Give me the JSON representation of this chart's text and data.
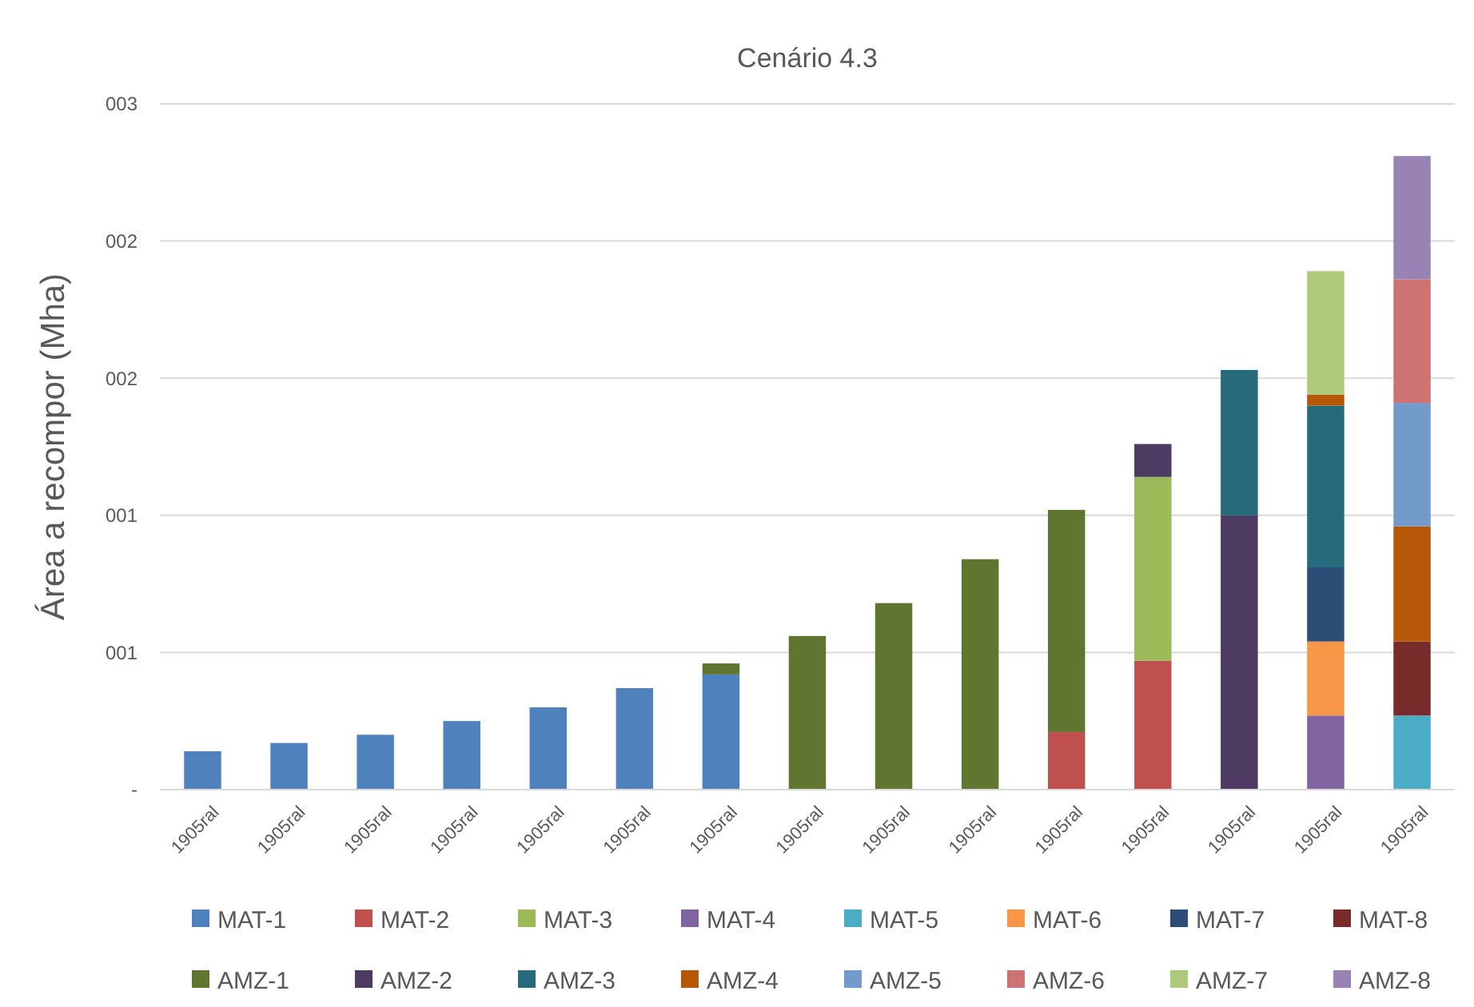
{
  "chart_data": {
    "type": "bar",
    "title": "Cenário 4.3",
    "ylabel": "Área a recompor (Mha)",
    "stacked": true,
    "grid": "y",
    "legend": "bottom",
    "categories": [
      "1905ral",
      "1905ral",
      "1905ral",
      "1905ral",
      "1905ral",
      "1905ral",
      "1905ral",
      "1905ral",
      "1905ral",
      "1905ral",
      "1905ral",
      "1905ral",
      "1905ral",
      "1905ral",
      "1905ral"
    ],
    "ylim": [
      0,
      2.5
    ],
    "yticks": [
      {
        "value": 0,
        "label": "-"
      },
      {
        "value": 0.5,
        "label": "001"
      },
      {
        "value": 1,
        "label": "001"
      },
      {
        "value": 1.5,
        "label": "002"
      },
      {
        "value": 2,
        "label": "002"
      },
      {
        "value": 2.5,
        "label": "003"
      }
    ],
    "series": [
      {
        "name": "MAT-1",
        "color": "#4f81bd",
        "values": [
          0.14,
          0.17,
          0.2,
          0.25,
          0.3,
          0.37,
          0.42,
          null,
          null,
          null,
          null,
          null,
          null,
          null,
          null
        ]
      },
      {
        "name": "MAT-2",
        "color": "#c0504d",
        "values": [
          null,
          null,
          null,
          null,
          null,
          null,
          null,
          null,
          null,
          null,
          0.21,
          0.47,
          null,
          null,
          null
        ]
      },
      {
        "name": "MAT-3",
        "color": "#9bbb59",
        "values": [
          null,
          null,
          null,
          null,
          null,
          null,
          null,
          null,
          null,
          null,
          null,
          0.67,
          null,
          null,
          null
        ]
      },
      {
        "name": "MAT-4",
        "color": "#8064a2",
        "values": [
          null,
          null,
          null,
          null,
          null,
          null,
          null,
          null,
          null,
          null,
          null,
          null,
          null,
          0.27,
          null
        ]
      },
      {
        "name": "MAT-5",
        "color": "#4bacc6",
        "values": [
          null,
          null,
          null,
          null,
          null,
          null,
          null,
          null,
          null,
          null,
          null,
          null,
          null,
          null,
          0.27
        ]
      },
      {
        "name": "MAT-6",
        "color": "#f79646",
        "values": [
          null,
          null,
          null,
          null,
          null,
          null,
          null,
          null,
          null,
          null,
          null,
          null,
          null,
          0.27,
          null
        ]
      },
      {
        "name": "MAT-7",
        "color": "#2c4d75",
        "values": [
          null,
          null,
          null,
          null,
          null,
          null,
          null,
          null,
          null,
          null,
          null,
          null,
          null,
          0.27,
          null
        ]
      },
      {
        "name": "MAT-8",
        "color": "#772c2a",
        "values": [
          null,
          null,
          null,
          null,
          null,
          null,
          null,
          null,
          null,
          null,
          null,
          null,
          null,
          null,
          0.27
        ]
      },
      {
        "name": "AMZ-1",
        "color": "#5f7530",
        "values": [
          null,
          null,
          null,
          null,
          null,
          null,
          0.04,
          0.56,
          0.68,
          0.84,
          0.81,
          null,
          null,
          null,
          null
        ]
      },
      {
        "name": "AMZ-2",
        "color": "#4d3b62",
        "values": [
          null,
          null,
          null,
          null,
          null,
          null,
          null,
          null,
          null,
          null,
          null,
          0.12,
          1.0,
          null,
          null
        ]
      },
      {
        "name": "AMZ-3",
        "color": "#276a7c",
        "values": [
          null,
          null,
          null,
          null,
          null,
          null,
          null,
          null,
          null,
          null,
          null,
          null,
          0.53,
          0.59,
          null
        ]
      },
      {
        "name": "AMZ-4",
        "color": "#b65708",
        "values": [
          null,
          null,
          null,
          null,
          null,
          null,
          null,
          null,
          null,
          null,
          null,
          null,
          null,
          0.04,
          0.42
        ]
      },
      {
        "name": "AMZ-5",
        "color": "#729aca",
        "values": [
          null,
          null,
          null,
          null,
          null,
          null,
          null,
          null,
          null,
          null,
          null,
          null,
          null,
          null,
          0.45
        ]
      },
      {
        "name": "AMZ-6",
        "color": "#cd7371",
        "values": [
          null,
          null,
          null,
          null,
          null,
          null,
          null,
          null,
          null,
          null,
          null,
          null,
          null,
          null,
          0.45
        ]
      },
      {
        "name": "AMZ-7",
        "color": "#afc97a",
        "values": [
          null,
          null,
          null,
          null,
          null,
          null,
          null,
          null,
          null,
          null,
          null,
          null,
          null,
          0.45,
          null
        ]
      },
      {
        "name": "AMZ-8",
        "color": "#9983b5",
        "values": [
          null,
          null,
          null,
          null,
          null,
          null,
          null,
          null,
          null,
          null,
          null,
          null,
          null,
          null,
          0.45
        ]
      }
    ]
  }
}
